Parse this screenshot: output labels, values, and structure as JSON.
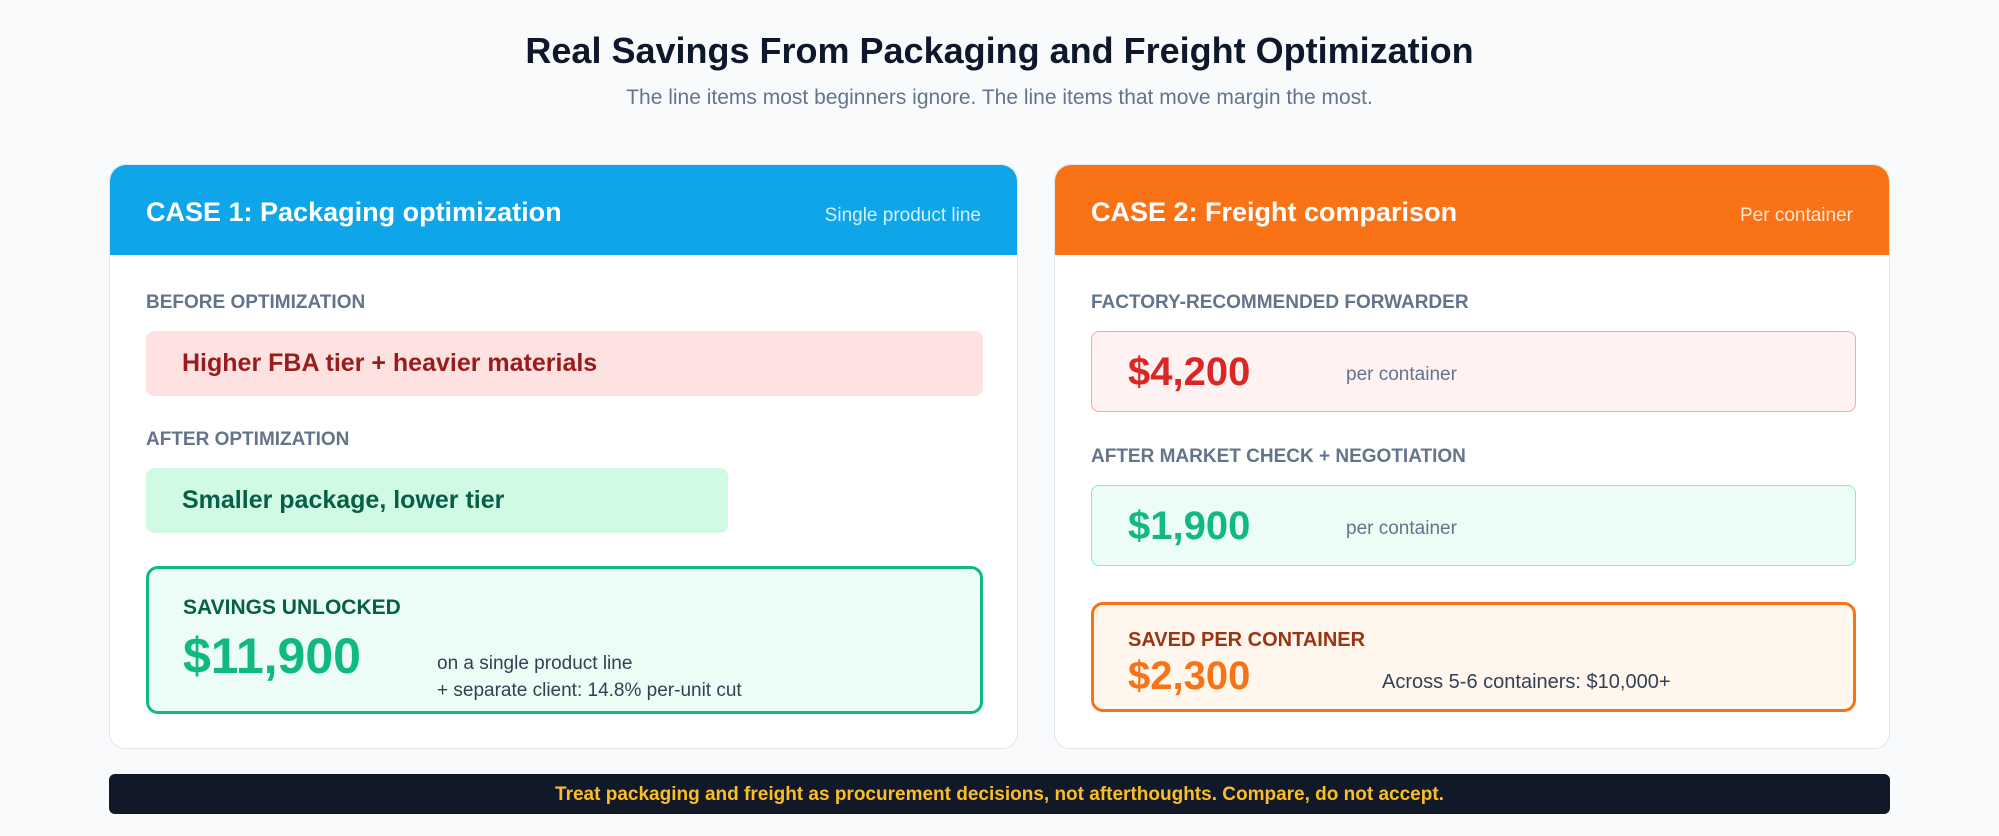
{
  "header": {
    "title": "Real Savings From Packaging and Freight Optimization",
    "subtitle": "The line items most beginners ignore. The line items that move margin the most."
  },
  "case1": {
    "title": "CASE 1: Packaging optimization",
    "tag": "Single product line",
    "before_label": "BEFORE OPTIMIZATION",
    "before_text": "Higher FBA tier + heavier materials",
    "after_label": "AFTER OPTIMIZATION",
    "after_text": "Smaller package, lower tier",
    "savings_label": "SAVINGS UNLOCKED",
    "savings_value": "$11,900",
    "savings_note_1": "on a single product line",
    "savings_note_2": "+ separate client: 14.8% per-unit cut"
  },
  "case2": {
    "title": "CASE 2: Freight comparison",
    "tag": "Per container",
    "forwarder_label": "FACTORY-RECOMMENDED FORWARDER",
    "forwarder_price": "$4,200",
    "forwarder_unit": "per container",
    "negotiated_label": "AFTER MARKET CHECK + NEGOTIATION",
    "negotiated_price": "$1,900",
    "negotiated_unit": "per container",
    "saved_label": "SAVED PER CONTAINER",
    "saved_value": "$2,300",
    "saved_note": "Across 5-6 containers: $10,000+"
  },
  "banner": {
    "text": "Treat packaging and freight as procurement decisions, not afterthoughts. Compare, do not accept."
  },
  "colors": {
    "case1_accent": "#0ea5e9",
    "case2_accent": "#f97316",
    "positive": "#10b981",
    "negative": "#dc2626",
    "banner_text": "#fbbf24"
  }
}
